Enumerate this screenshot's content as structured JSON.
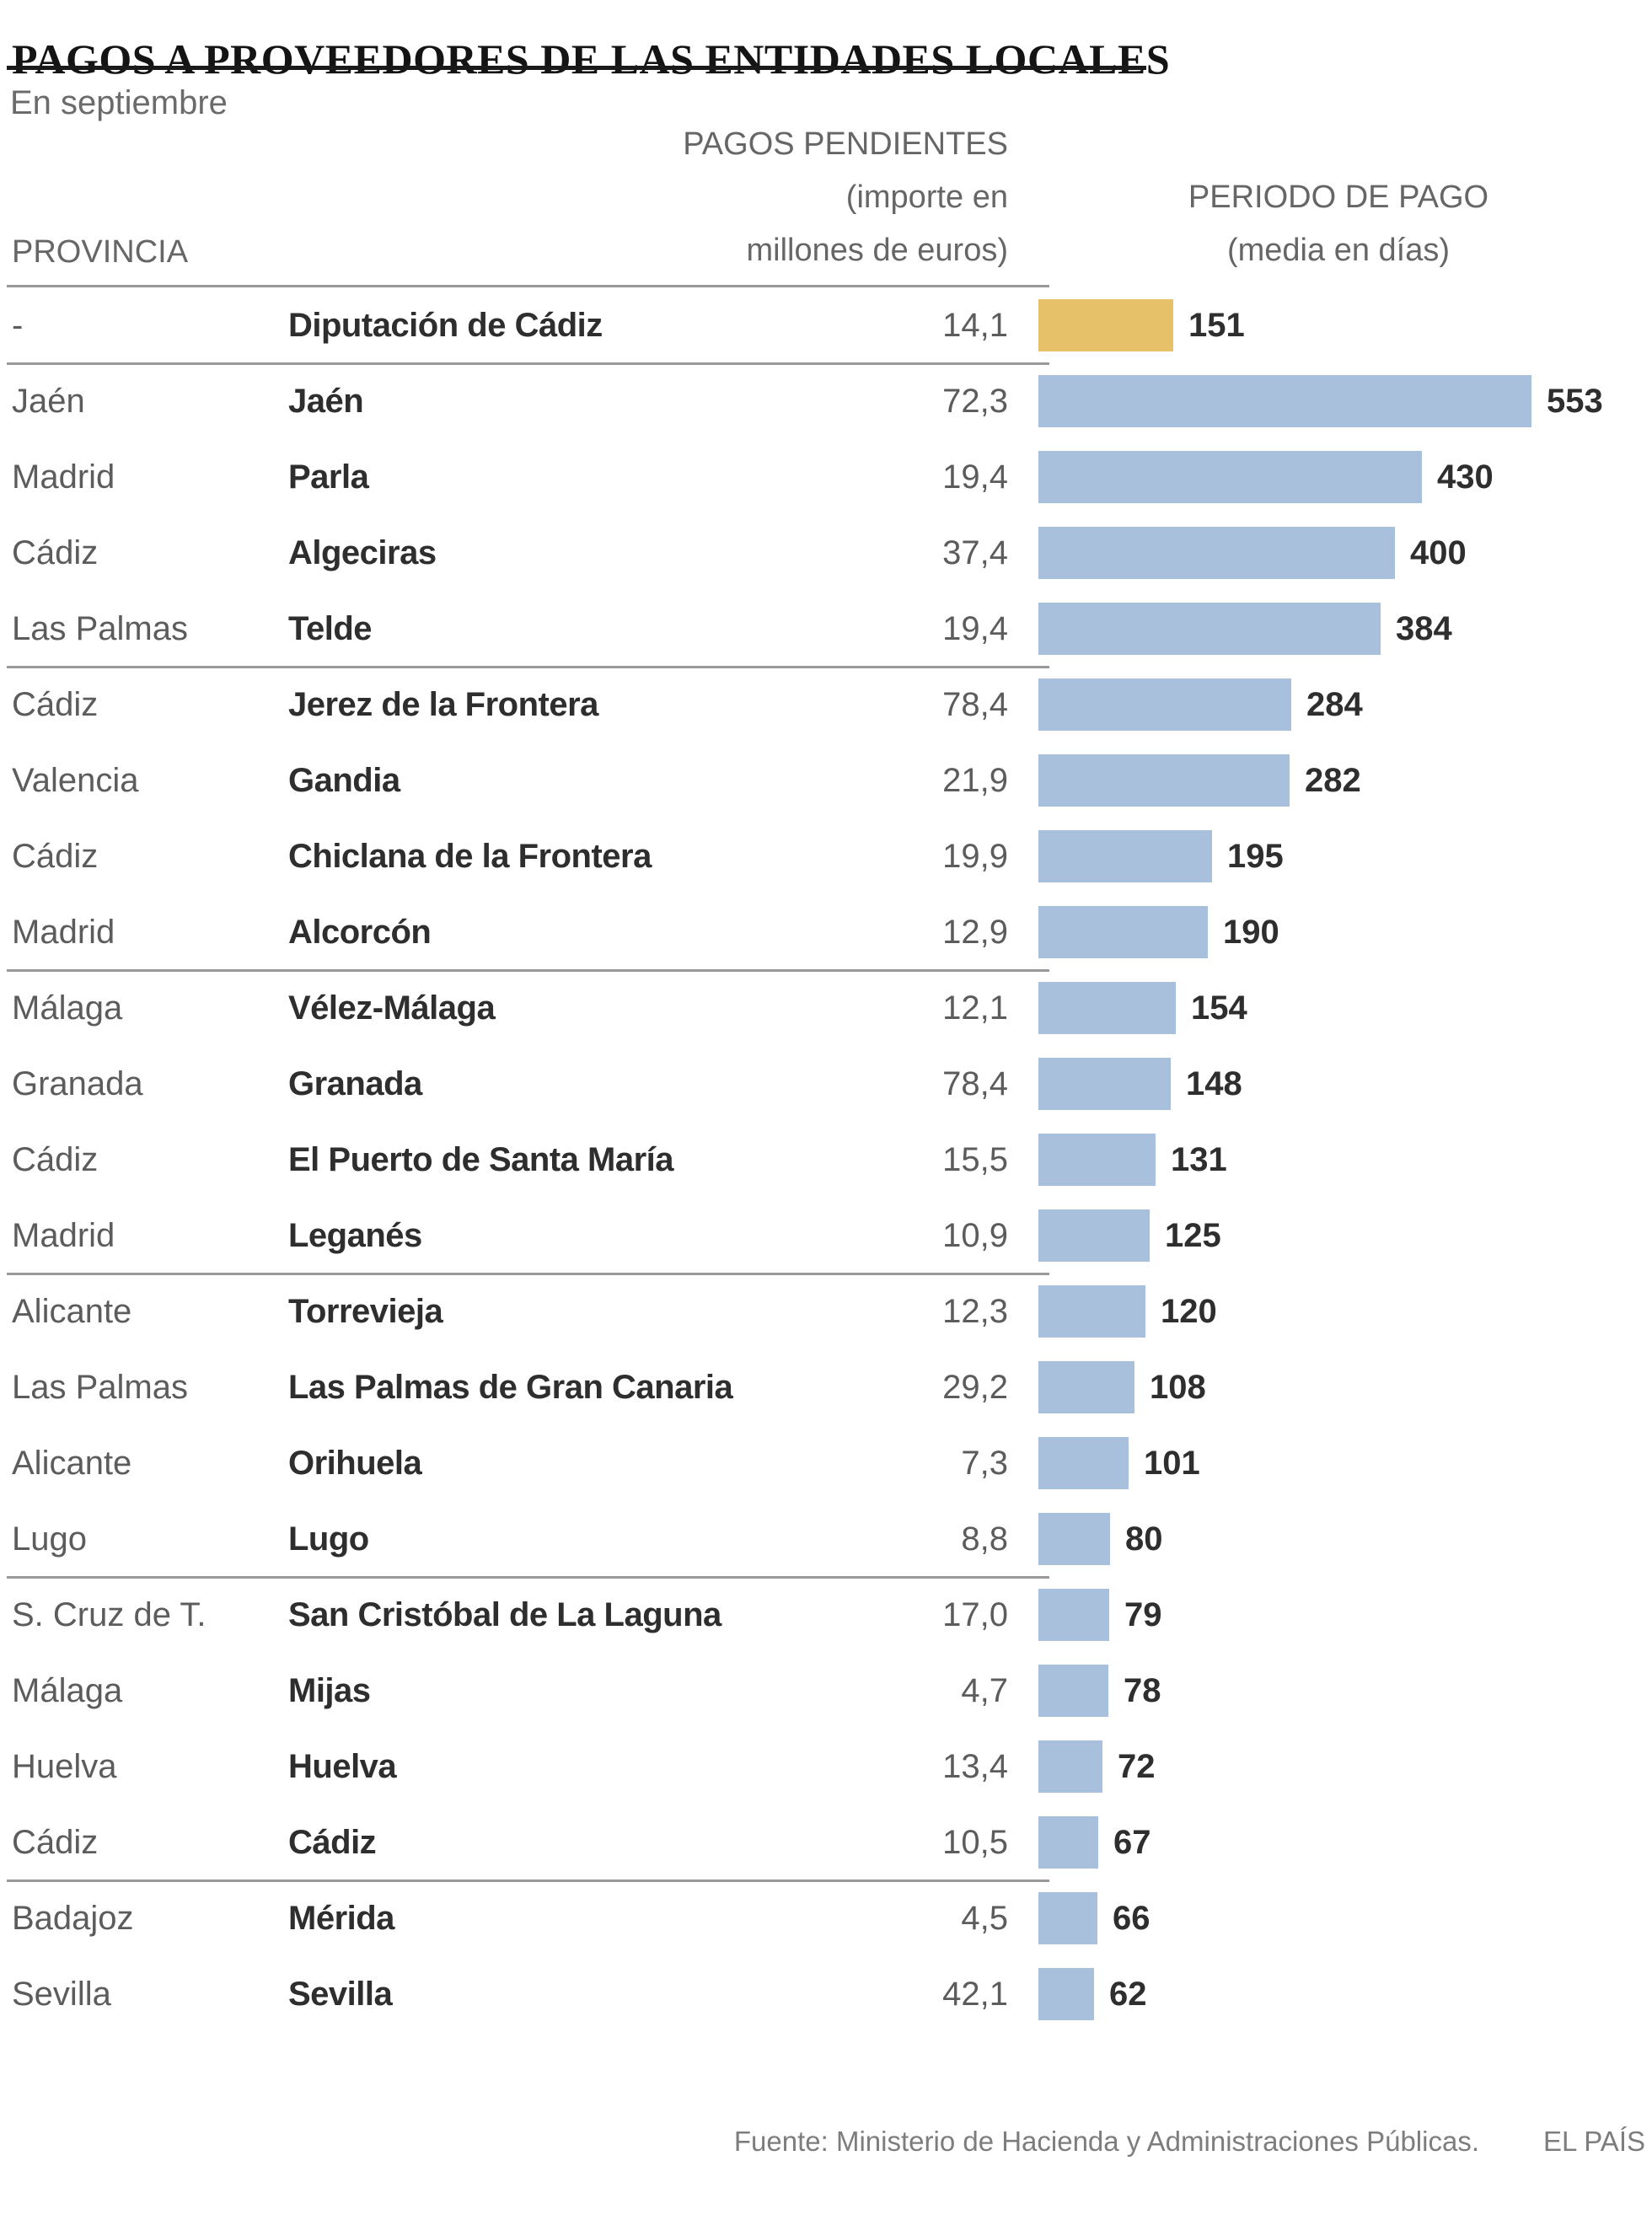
{
  "title": "PAGOS A PROVEEDORES DE LAS ENTIDADES LOCALES",
  "subtitle": "En septiembre",
  "columns": {
    "province": "PROVINCIA",
    "pending_line1": "PAGOS PENDIENTES",
    "pending_line2": "(importe en",
    "pending_line3": "millones de euros)",
    "period_line1": "PERIODO DE PAGO",
    "period_line2": "(media en días)"
  },
  "footer": {
    "source": "Fuente: Ministerio de Hacienda y Administraciones Públicas.",
    "credit": "EL PAÍS"
  },
  "colors": {
    "bar": "#a8c0dc",
    "highlight_bar": "#e6c169",
    "separator": "#999999",
    "title_rule": "#1a1a1a",
    "text_dark": "#2e2e2e",
    "text_gray": "#5c5c5c",
    "header_gray": "#666666",
    "footer_gray": "#7d7d7d"
  },
  "chart_data": {
    "type": "bar",
    "orientation": "horizontal",
    "title": "PAGOS A PROVEEDORES DE LAS ENTIDADES LOCALES",
    "subtitle": "En septiembre",
    "value_axis_label": "PERIODO DE PAGO (media en días)",
    "secondary_value_label": "PAGOS PENDIENTES (importe en millones de euros)",
    "category_axis_label": "PROVINCIA",
    "max_days": 553,
    "rows": [
      {
        "province": "-",
        "municipality": "Diputación de Cádiz",
        "pending": "14,1",
        "days": 151,
        "highlight": true,
        "group_end": true
      },
      {
        "province": "Jaén",
        "municipality": "Jaén",
        "pending": "72,3",
        "days": 553,
        "highlight": false,
        "group_end": false
      },
      {
        "province": "Madrid",
        "municipality": "Parla",
        "pending": "19,4",
        "days": 430,
        "highlight": false,
        "group_end": false
      },
      {
        "province": "Cádiz",
        "municipality": "Algeciras",
        "pending": "37,4",
        "days": 400,
        "highlight": false,
        "group_end": false
      },
      {
        "province": "Las Palmas",
        "municipality": "Telde",
        "pending": "19,4",
        "days": 384,
        "highlight": false,
        "group_end": true
      },
      {
        "province": "Cádiz",
        "municipality": "Jerez de la Frontera",
        "pending": "78,4",
        "days": 284,
        "highlight": false,
        "group_end": false
      },
      {
        "province": "Valencia",
        "municipality": "Gandia",
        "pending": "21,9",
        "days": 282,
        "highlight": false,
        "group_end": false
      },
      {
        "province": "Cádiz",
        "municipality": "Chiclana de la Frontera",
        "pending": "19,9",
        "days": 195,
        "highlight": false,
        "group_end": false
      },
      {
        "province": "Madrid",
        "municipality": "Alcorcón",
        "pending": "12,9",
        "days": 190,
        "highlight": false,
        "group_end": true
      },
      {
        "province": "Málaga",
        "municipality": "Vélez-Málaga",
        "pending": "12,1",
        "days": 154,
        "highlight": false,
        "group_end": false
      },
      {
        "province": "Granada",
        "municipality": "Granada",
        "pending": "78,4",
        "days": 148,
        "highlight": false,
        "group_end": false
      },
      {
        "province": "Cádiz",
        "municipality": "El Puerto de Santa María",
        "pending": "15,5",
        "days": 131,
        "highlight": false,
        "group_end": false
      },
      {
        "province": "Madrid",
        "municipality": "Leganés",
        "pending": "10,9",
        "days": 125,
        "highlight": false,
        "group_end": true
      },
      {
        "province": "Alicante",
        "municipality": "Torrevieja",
        "pending": "12,3",
        "days": 120,
        "highlight": false,
        "group_end": false
      },
      {
        "province": "Las Palmas",
        "municipality": "Las Palmas de Gran Canaria",
        "pending": "29,2",
        "days": 108,
        "highlight": false,
        "group_end": false
      },
      {
        "province": "Alicante",
        "municipality": "Orihuela",
        "pending": "7,3",
        "days": 101,
        "highlight": false,
        "group_end": false
      },
      {
        "province": "Lugo",
        "municipality": "Lugo",
        "pending": "8,8",
        "days": 80,
        "highlight": false,
        "group_end": true
      },
      {
        "province": "S. Cruz de T.",
        "municipality": "San Cristóbal de La Laguna",
        "pending": "17,0",
        "days": 79,
        "highlight": false,
        "group_end": false
      },
      {
        "province": "Málaga",
        "municipality": "Mijas",
        "pending": "4,7",
        "days": 78,
        "highlight": false,
        "group_end": false
      },
      {
        "province": "Huelva",
        "municipality": "Huelva",
        "pending": "13,4",
        "days": 72,
        "highlight": false,
        "group_end": false
      },
      {
        "province": "Cádiz",
        "municipality": "Cádiz",
        "pending": "10,5",
        "days": 67,
        "highlight": false,
        "group_end": true
      },
      {
        "province": "Badajoz",
        "municipality": "Mérida",
        "pending": "4,5",
        "days": 66,
        "highlight": false,
        "group_end": false
      },
      {
        "province": "Sevilla",
        "municipality": "Sevilla",
        "pending": "42,1",
        "days": 62,
        "highlight": false,
        "group_end": false
      }
    ]
  }
}
